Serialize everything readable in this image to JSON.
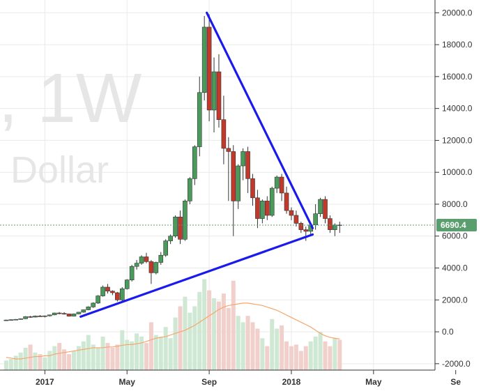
{
  "watermark": {
    "symbol": "/, 1W",
    "currency": "Dollar"
  },
  "last_price": {
    "label": "6690.4",
    "value": 6690.4,
    "color": "#5b9e6e"
  },
  "colors": {
    "up": "#4a9a5c",
    "down": "#c0392b",
    "trendline": "#1a1aee",
    "ma": "#f4a76d",
    "grid": "#e9e9e9"
  },
  "chart_data": {
    "type": "candlestick",
    "y_axis": {
      "ticks": [
        20000,
        18000,
        16000,
        14000,
        12000,
        10000,
        8000,
        6000,
        4000,
        2000,
        0,
        -2000
      ],
      "tick_labels": [
        "20000.0",
        "18000.0",
        "16000.0",
        "14000.0",
        "12000.0",
        "10000.0",
        "8000.0",
        "6000.0",
        "4000.0",
        "2000.0",
        "0.0",
        "-2000.0"
      ],
      "ylim": [
        -2400,
        20800
      ]
    },
    "x_axis": {
      "labels": [
        {
          "text": "2017",
          "week": 8
        },
        {
          "text": "May",
          "week": 25
        },
        {
          "text": "Sep",
          "week": 42
        },
        {
          "text": "2018",
          "week": 59
        },
        {
          "text": "May",
          "week": 76
        },
        {
          "text": "Se",
          "week": 93
        }
      ],
      "xlim": [
        0,
        90
      ]
    },
    "candles": [
      [
        700,
        760,
        680,
        740
      ],
      [
        740,
        780,
        720,
        760
      ],
      [
        760,
        800,
        740,
        780
      ],
      [
        780,
        840,
        760,
        820
      ],
      [
        820,
        980,
        800,
        950
      ],
      [
        950,
        1000,
        880,
        920
      ],
      [
        920,
        1020,
        900,
        990
      ],
      [
        990,
        1050,
        940,
        970
      ],
      [
        970,
        1020,
        900,
        1000
      ],
      [
        1000,
        1080,
        960,
        1060
      ],
      [
        1060,
        1200,
        1040,
        1180
      ],
      [
        1180,
        1240,
        1100,
        1150
      ],
      [
        1150,
        1230,
        1080,
        1120
      ],
      [
        1120,
        1140,
        950,
        980
      ],
      [
        980,
        1150,
        960,
        1120
      ],
      [
        1120,
        1250,
        1100,
        1230
      ],
      [
        1230,
        1400,
        1200,
        1380
      ],
      [
        1380,
        1600,
        1350,
        1560
      ],
      [
        1560,
        1850,
        1500,
        1800
      ],
      [
        1800,
        2300,
        1750,
        2250
      ],
      [
        2250,
        2900,
        2200,
        2800
      ],
      [
        2800,
        3000,
        2400,
        2550
      ],
      [
        2550,
        2600,
        2300,
        2450
      ],
      [
        2450,
        2500,
        1900,
        2000
      ],
      [
        2000,
        2800,
        1900,
        2700
      ],
      [
        2700,
        3300,
        2650,
        3250
      ],
      [
        3250,
        4200,
        3150,
        4100
      ],
      [
        4100,
        4500,
        3900,
        4300
      ],
      [
        4300,
        4800,
        4200,
        4700
      ],
      [
        4700,
        4950,
        4300,
        4400
      ],
      [
        4400,
        4500,
        3000,
        3700
      ],
      [
        3700,
        4400,
        3600,
        4350
      ],
      [
        4350,
        5000,
        4200,
        4800
      ],
      [
        4800,
        5800,
        4700,
        5700
      ],
      [
        5700,
        6100,
        5500,
        6000
      ],
      [
        6000,
        7300,
        5900,
        7200
      ],
      [
        7200,
        7600,
        5500,
        5800
      ],
      [
        5800,
        8300,
        5700,
        8200
      ],
      [
        8200,
        9700,
        8000,
        9600
      ],
      [
        9600,
        11700,
        9200,
        11600
      ],
      [
        11600,
        16000,
        11000,
        15000
      ],
      [
        15000,
        19800,
        14500,
        19100
      ],
      [
        19100,
        19900,
        13200,
        13900
      ],
      [
        13900,
        17200,
        12500,
        16300
      ],
      [
        16300,
        17400,
        12800,
        13300
      ],
      [
        13300,
        14800,
        10500,
        11500
      ],
      [
        11500,
        12200,
        8200,
        11300
      ],
      [
        11300,
        11700,
        6000,
        8200
      ],
      [
        8200,
        10500,
        7700,
        10400
      ],
      [
        10400,
        11500,
        9500,
        11300
      ],
      [
        11300,
        11600,
        8700,
        9600
      ],
      [
        9600,
        9900,
        7900,
        8400
      ],
      [
        8400,
        8900,
        6500,
        7100
      ],
      [
        7100,
        8300,
        6800,
        8200
      ],
      [
        8200,
        8500,
        7000,
        7300
      ],
      [
        7300,
        9100,
        7200,
        9000
      ],
      [
        9000,
        9800,
        8700,
        9700
      ],
      [
        9700,
        9900,
        8200,
        8700
      ],
      [
        8700,
        9100,
        7400,
        7600
      ],
      [
        7600,
        7800,
        7000,
        7300
      ],
      [
        7300,
        7600,
        6600,
        6800
      ],
      [
        6800,
        6900,
        6200,
        6400
      ],
      [
        6400,
        6600,
        5700,
        6300
      ],
      [
        6300,
        6800,
        6100,
        6700
      ],
      [
        6700,
        8000,
        6400,
        7400
      ],
      [
        7400,
        8400,
        7200,
        8300
      ],
      [
        8300,
        8500,
        6800,
        7100
      ],
      [
        7100,
        7300,
        6200,
        6400
      ],
      [
        6400,
        6800,
        6000,
        6700
      ],
      [
        6700,
        6900,
        6200,
        6690
      ]
    ],
    "volume": [
      -1800,
      -1700,
      -1500,
      -1300,
      -1000,
      -800,
      -1300,
      -1400,
      -1600,
      -1200,
      -900,
      -700,
      -1100,
      -1400,
      -1200,
      -900,
      -600,
      -200,
      -800,
      -1000,
      -300,
      -700,
      -1000,
      -800,
      100,
      -500,
      -600,
      -100,
      -300,
      -700,
      600,
      -200,
      -300,
      300,
      -400,
      900,
      1600,
      2200,
      1200,
      1600,
      2500,
      3300,
      2600,
      2100,
      1900,
      2400,
      1500,
      3200,
      1000,
      600,
      1000,
      600,
      200,
      -400,
      -900,
      800,
      200,
      400,
      -600,
      -900,
      -800,
      -1200,
      -900,
      -600,
      -300,
      0,
      -600,
      -900,
      -400,
      -500
    ],
    "moving_average": [
      -1600,
      -1650,
      -1700,
      -1700,
      -1650,
      -1600,
      -1550,
      -1550,
      -1500,
      -1500,
      -1400,
      -1350,
      -1300,
      -1250,
      -1200,
      -1150,
      -1100,
      -1050,
      -1000,
      -1000,
      -1000,
      -950,
      -950,
      -900,
      -850,
      -800,
      -800,
      -750,
      -700,
      -600,
      -500,
      -400,
      -350,
      -300,
      -200,
      -100,
      0,
      100,
      250,
      400,
      600,
      800,
      1000,
      1200,
      1400,
      1550,
      1650,
      1700,
      1750,
      1800,
      1800,
      1750,
      1700,
      1650,
      1550,
      1450,
      1350,
      1200,
      1050,
      900,
      750,
      600,
      450,
      300,
      100,
      -100,
      -250,
      -350,
      -400,
      -450
    ],
    "trendlines": [
      {
        "name": "upper",
        "from": {
          "week": 41.5,
          "value": 20000
        },
        "to": {
          "week": 63.4,
          "value": 6500
        }
      },
      {
        "name": "lower",
        "from": {
          "week": 15.4,
          "value": 950
        },
        "to": {
          "week": 63.4,
          "value": 6100
        }
      }
    ]
  }
}
